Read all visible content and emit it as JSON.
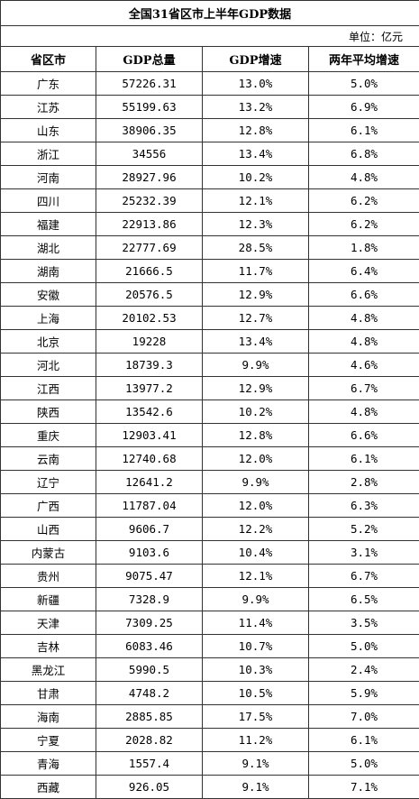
{
  "title": "全国31省区市上半年GDP数据",
  "unit": "单位：亿元",
  "columns": [
    "省区市",
    "GDP总量",
    "GDP增速",
    "两年平均增速"
  ],
  "rows": [
    [
      "广东",
      "57226.31",
      "13.0%",
      "5.0%"
    ],
    [
      "江苏",
      "55199.63",
      "13.2%",
      "6.9%"
    ],
    [
      "山东",
      "38906.35",
      "12.8%",
      "6.1%"
    ],
    [
      "浙江",
      "34556",
      "13.4%",
      "6.8%"
    ],
    [
      "河南",
      "28927.96",
      "10.2%",
      "4.8%"
    ],
    [
      "四川",
      "25232.39",
      "12.1%",
      "6.2%"
    ],
    [
      "福建",
      "22913.86",
      "12.3%",
      "6.2%"
    ],
    [
      "湖北",
      "22777.69",
      "28.5%",
      "1.8%"
    ],
    [
      "湖南",
      "21666.5",
      "11.7%",
      "6.4%"
    ],
    [
      "安徽",
      "20576.5",
      "12.9%",
      "6.6%"
    ],
    [
      "上海",
      "20102.53",
      "12.7%",
      "4.8%"
    ],
    [
      "北京",
      "19228",
      "13.4%",
      "4.8%"
    ],
    [
      "河北",
      "18739.3",
      "9.9%",
      "4.6%"
    ],
    [
      "江西",
      "13977.2",
      "12.9%",
      "6.7%"
    ],
    [
      "陕西",
      "13542.6",
      "10.2%",
      "4.8%"
    ],
    [
      "重庆",
      "12903.41",
      "12.8%",
      "6.6%"
    ],
    [
      "云南",
      "12740.68",
      "12.0%",
      "6.1%"
    ],
    [
      "辽宁",
      "12641.2",
      "9.9%",
      "2.8%"
    ],
    [
      "广西",
      "11787.04",
      "12.0%",
      "6.3%"
    ],
    [
      "山西",
      "9606.7",
      "12.2%",
      "5.2%"
    ],
    [
      "内蒙古",
      "9103.6",
      "10.4%",
      "3.1%"
    ],
    [
      "贵州",
      "9075.47",
      "12.1%",
      "6.7%"
    ],
    [
      "新疆",
      "7328.9",
      "9.9%",
      "6.5%"
    ],
    [
      "天津",
      "7309.25",
      "11.4%",
      "3.5%"
    ],
    [
      "吉林",
      "6083.46",
      "10.7%",
      "5.0%"
    ],
    [
      "黑龙江",
      "5990.5",
      "10.3%",
      "2.4%"
    ],
    [
      "甘肃",
      "4748.2",
      "10.5%",
      "5.9%"
    ],
    [
      "海南",
      "2885.85",
      "17.5%",
      "7.0%"
    ],
    [
      "宁夏",
      "2028.82",
      "11.2%",
      "6.1%"
    ],
    [
      "青海",
      "1557.4",
      "9.1%",
      "5.0%"
    ],
    [
      "西藏",
      "926.05",
      "9.1%",
      "7.1%"
    ]
  ]
}
